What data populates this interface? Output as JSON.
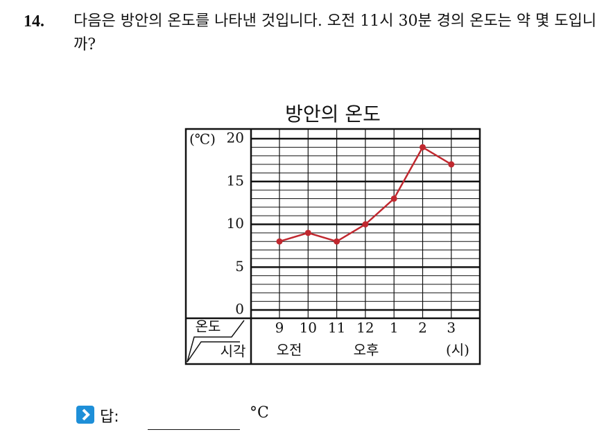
{
  "question": {
    "number": "14.",
    "text": "다음은 방안의 온도를 나타낸 것입니다. 오전 11시 30분 경의 온도는 약 몇 도입니까?"
  },
  "chart_data": {
    "type": "line",
    "title": "방안의 온도",
    "y_unit": "(℃)",
    "corner_top": "온도",
    "corner_bottom": "시각",
    "categories": [
      "9",
      "10",
      "11",
      "12",
      "1",
      "2",
      "3"
    ],
    "values": [
      8,
      9,
      8,
      10,
      13,
      19,
      17
    ],
    "color": "#c0282f",
    "ylim": [
      0,
      20
    ],
    "yticks": [
      0,
      5,
      10,
      15,
      20
    ],
    "grid": true,
    "period_labels": [
      "오전",
      "오후",
      "(시)"
    ]
  },
  "answer": {
    "label": "답:",
    "unit": "°C"
  }
}
